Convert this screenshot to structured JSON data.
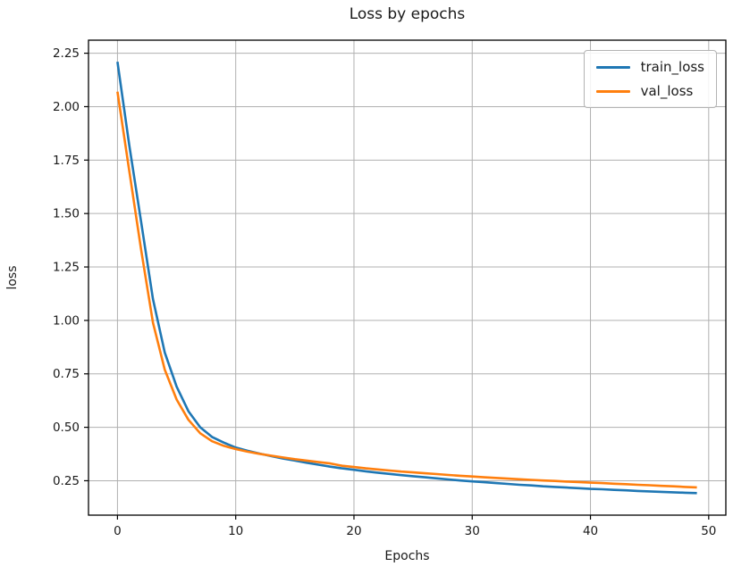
{
  "style": {
    "background": "#ffffff",
    "grid_color": "#b0b0b0",
    "spine_color": "#000000",
    "text_color": "#1a1a1a",
    "train_color": "#1f77b4",
    "val_color": "#ff7f0e"
  },
  "chart_data": {
    "type": "line",
    "title": "Loss by epochs",
    "xlabel": "Epochs",
    "ylabel": "loss",
    "grid": true,
    "legend_position": "upper-right",
    "xlim": [
      -2.45,
      51.45
    ],
    "ylim": [
      0.089,
      2.311
    ],
    "xticks": [
      0,
      10,
      20,
      30,
      40,
      50
    ],
    "yticks": [
      0.25,
      0.5,
      0.75,
      1.0,
      1.25,
      1.5,
      1.75,
      2.0,
      2.25
    ],
    "x": [
      0,
      1,
      2,
      3,
      4,
      5,
      6,
      7,
      8,
      9,
      10,
      11,
      12,
      13,
      14,
      15,
      16,
      17,
      18,
      19,
      20,
      21,
      22,
      23,
      24,
      25,
      26,
      27,
      28,
      29,
      30,
      31,
      32,
      33,
      34,
      35,
      36,
      37,
      38,
      39,
      40,
      41,
      42,
      43,
      44,
      45,
      46,
      47,
      48,
      49
    ],
    "series": [
      {
        "name": "train_loss",
        "color": "#1f77b4",
        "values": [
          2.21,
          1.82,
          1.46,
          1.1,
          0.85,
          0.69,
          0.575,
          0.5,
          0.455,
          0.428,
          0.405,
          0.39,
          0.377,
          0.365,
          0.354,
          0.344,
          0.334,
          0.325,
          0.316,
          0.308,
          0.301,
          0.294,
          0.288,
          0.282,
          0.276,
          0.271,
          0.266,
          0.261,
          0.256,
          0.251,
          0.247,
          0.243,
          0.239,
          0.235,
          0.231,
          0.228,
          0.224,
          0.221,
          0.218,
          0.215,
          0.212,
          0.21,
          0.207,
          0.205,
          0.202,
          0.2,
          0.198,
          0.196,
          0.194,
          0.192
        ]
      },
      {
        "name": "val_loss",
        "color": "#ff7f0e",
        "values": [
          2.07,
          1.7,
          1.33,
          0.99,
          0.77,
          0.63,
          0.535,
          0.472,
          0.435,
          0.413,
          0.398,
          0.386,
          0.376,
          0.367,
          0.359,
          0.351,
          0.344,
          0.337,
          0.331,
          0.32,
          0.314,
          0.308,
          0.303,
          0.298,
          0.293,
          0.289,
          0.285,
          0.281,
          0.277,
          0.273,
          0.27,
          0.266,
          0.263,
          0.26,
          0.257,
          0.254,
          0.251,
          0.249,
          0.246,
          0.244,
          0.241,
          0.239,
          0.236,
          0.234,
          0.231,
          0.229,
          0.226,
          0.224,
          0.221,
          0.219
        ]
      }
    ]
  }
}
